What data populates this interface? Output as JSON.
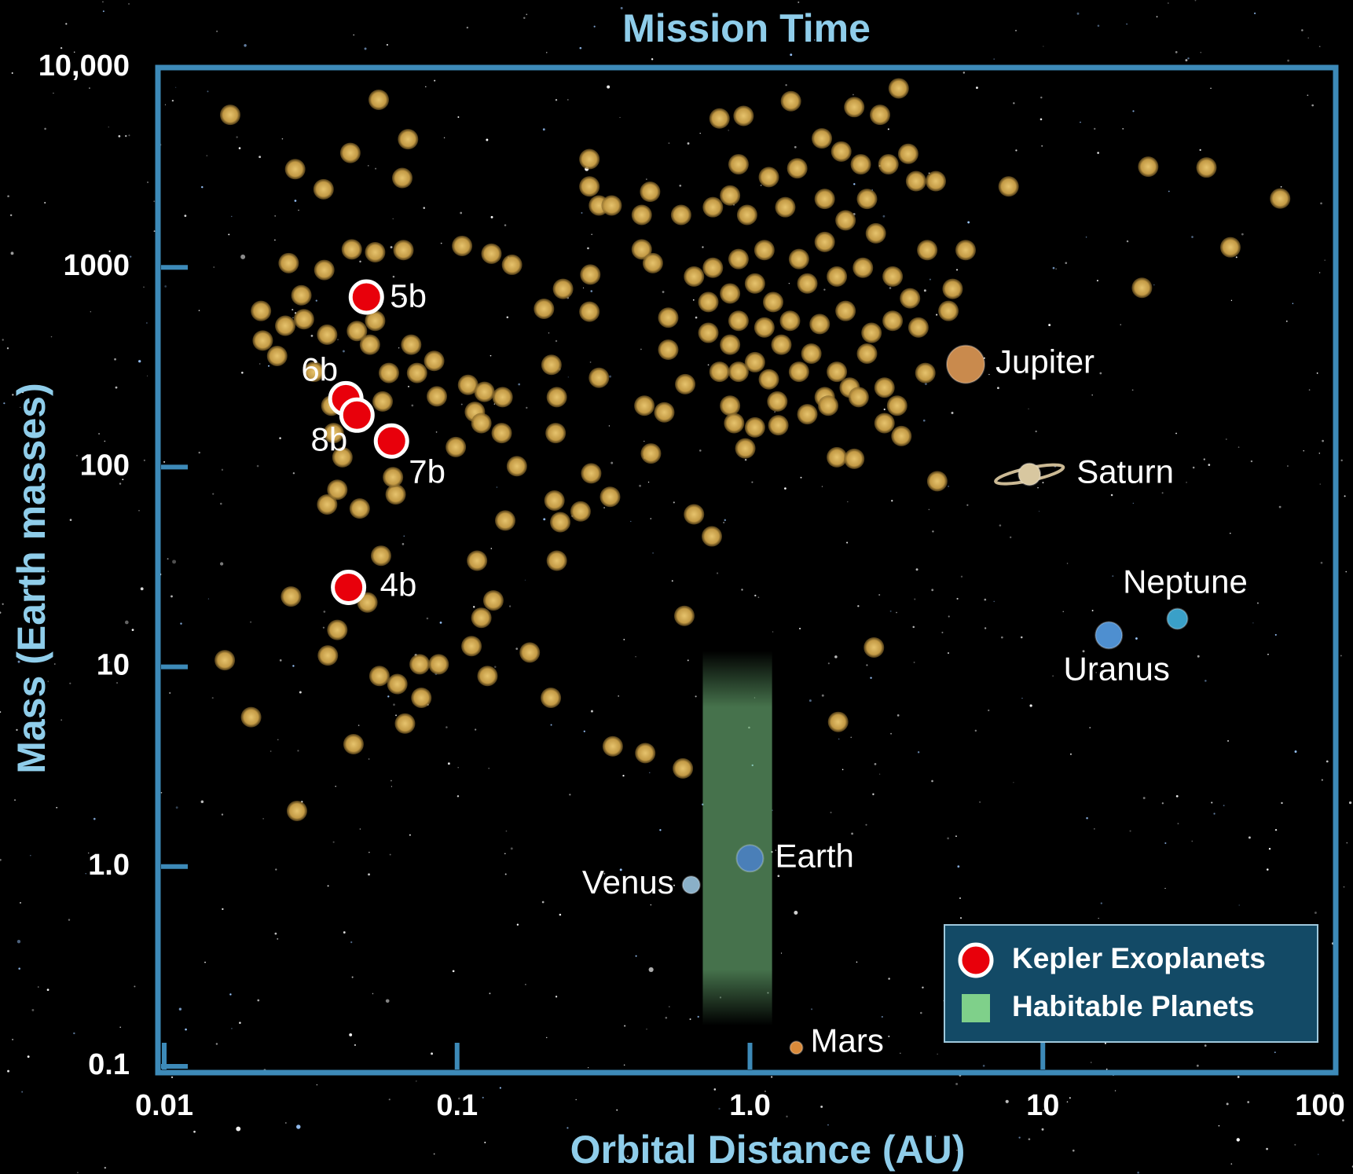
{
  "chart_data": {
    "type": "scatter",
    "title": "Mission Time",
    "x_label": "Orbital Distance (AU)",
    "y_label": "Mass (Earth masses)",
    "xscale": "log",
    "yscale": "log",
    "xlim": [
      0.01,
      100
    ],
    "ylim": [
      0.1,
      10000
    ],
    "xticks": [
      0.01,
      0.1,
      {
        "value": 1,
        "label": "1.0"
      },
      10,
      100
    ],
    "yticks": [
      0.1,
      {
        "value": 1,
        "label": "1.0"
      },
      10,
      100,
      1000,
      {
        "value": 10000,
        "label": "10,000"
      }
    ],
    "legend": "lower right",
    "series": [
      {
        "color": "#c9a14b",
        "x": [
          0.0168,
          0.054,
          0.028,
          0.035,
          0.0432,
          0.068,
          0.065,
          0.0266,
          0.0352,
          0.0437,
          0.0525,
          0.0656,
          0.0214,
          0.0259,
          0.0294,
          0.0217,
          0.0243,
          0.03,
          0.036,
          0.0455,
          0.0525,
          0.0325,
          0.0372,
          0.0504,
          0.0557,
          0.0697,
          0.073,
          0.0585,
          0.0853,
          0.0835,
          0.0379,
          0.0406,
          0.036,
          0.039,
          0.0465,
          0.0617,
          0.0604,
          0.055,
          0.0271,
          0.0494,
          0.039,
          0.0362,
          0.0161,
          0.0198,
          0.0543,
          0.0625,
          0.0745,
          0.0865,
          0.0755,
          0.0664,
          0.0443,
          0.0284,
          0.104,
          0.131,
          0.154,
          0.198,
          0.23,
          0.285,
          0.283,
          0.21,
          0.305,
          0.109,
          0.124,
          0.143,
          0.115,
          0.121,
          0.142,
          0.099,
          0.219,
          0.217,
          0.16,
          0.287,
          0.215,
          0.264,
          0.333,
          0.146,
          0.225,
          0.117,
          0.219,
          0.133,
          0.121,
          0.112,
          0.177,
          0.127,
          0.209,
          0.34,
          0.439,
          0.59,
          0.597,
          0.644,
          0.741,
          0.283,
          0.283,
          0.305,
          0.337,
          0.456,
          0.427,
          0.582,
          0.427,
          0.466,
          0.787,
          0.951,
          1.38,
          2.27,
          2.78,
          3.22,
          7.64,
          22.9,
          36.2,
          64.6,
          43.7,
          21.8,
          4.36,
          2.65,
          2.0,
          5.45,
          0.914,
          1.16,
          1.45,
          1.76,
          2.05,
          2.39,
          2.97,
          3.47,
          3.69,
          4.31,
          0.747,
          0.855,
          0.978,
          1.32,
          1.8,
          2.12,
          2.51,
          2.69,
          1.8,
          1.47,
          1.12,
          0.914,
          0.747,
          0.644,
          0.721,
          0.855,
          1.04,
          1.2,
          1.57,
          1.98,
          2.43,
          3.07,
          3.52,
          4.03,
          4.92,
          4.76,
          3.76,
          3.07,
          2.6,
          2.12,
          1.73,
          1.37,
          1.12,
          0.914,
          0.721,
          0.855,
          1.04,
          1.28,
          1.62,
          1.98,
          2.51,
          2.88,
          2.19,
          1.8,
          1.47,
          1.16,
          0.914,
          0.787,
          0.855,
          1.04,
          1.24,
          1.57,
          1.85,
          2.35,
          3.18,
          3.29,
          2.88,
          1.98,
          2.27,
          0.964,
          0.883,
          1.25,
          3.97,
          0.459,
          0.526,
          0.436,
          0.51,
          0.601,
          0.526
        ],
        "y": [
          5800,
          6900,
          3100,
          2460,
          3740,
          4380,
          2800,
          1050,
          970,
          1230,
          1190,
          1220,
          605,
          510,
          725,
          430,
          360,
          550,
          460,
          480,
          540,
          300,
          203,
          410,
          213,
          410,
          296,
          296,
          226,
          340,
          148,
          112,
          65,
          77,
          62,
          73,
          89,
          36,
          22.5,
          21,
          15.3,
          11.4,
          10.8,
          5.6,
          9.0,
          8.2,
          10.3,
          10.3,
          7.0,
          5.2,
          4.1,
          1.9,
          1280,
          1170,
          1030,
          620,
          780,
          920,
          600,
          325,
          280,
          258,
          238,
          224,
          189,
          166,
          148,
          126,
          224,
          148,
          101,
          93,
          68,
          60,
          71,
          54,
          53,
          34,
          34,
          21.5,
          17.6,
          12.7,
          11.8,
          9.0,
          7.0,
          4.0,
          3.7,
          3.1,
          18,
          58,
          45,
          3480,
          2540,
          2040,
          2040,
          2390,
          1830,
          1830,
          1230,
          1050,
          5560,
          5730,
          6790,
          6340,
          5800,
          7870,
          2540,
          3190,
          3160,
          2210,
          1260,
          790,
          85,
          12.5,
          5.3,
          1220,
          3280,
          2830,
          3130,
          4420,
          3800,
          3280,
          3280,
          3700,
          2700,
          2700,
          2000,
          2290,
          1830,
          2000,
          2200,
          1720,
          2200,
          1480,
          1340,
          1100,
          1220,
          1100,
          995,
          900,
          670,
          740,
          830,
          670,
          830,
          900,
          995,
          900,
          700,
          1220,
          780,
          605,
          500,
          540,
          470,
          605,
          520,
          540,
          500,
          540,
          470,
          410,
          335,
          410,
          370,
          300,
          370,
          250,
          250,
          224,
          300,
          275,
          300,
          300,
          203,
          158,
          213,
          184,
          203,
          224,
          203,
          143,
          166,
          112,
          110,
          124,
          166,
          162,
          296,
          117,
          387,
          203,
          188,
          260,
          560
        ]
      },
      {
        "name": "Kepler Exoplanets",
        "color": "#e8000b",
        "x": [
          0.0426,
          0.049,
          0.0417,
          0.0455,
          0.0597
        ],
        "y": [
          25,
          710,
          220,
          182,
          135
        ],
        "labels": [
          "4b",
          "5b",
          "6b",
          "8b",
          "7b"
        ]
      },
      {
        "name": "Habitable Planets",
        "color": "#7fd08a",
        "xrange": [
          0.69,
          1.19
        ],
        "yrange": [
          0.16,
          12
        ]
      },
      {
        "x": [
          0.63,
          1.0,
          1.44,
          5.45,
          9.0,
          16.8,
          28.8
        ],
        "y": [
          0.81,
          1.1,
          0.124,
          327,
          92,
          14.4,
          17.4
        ],
        "labels": [
          "Venus",
          "Earth",
          "Mars",
          "Jupiter",
          "Saturn",
          "Uranus",
          "Neptune"
        ],
        "colors": [
          "#8ab0c8",
          "#4a7fb8",
          "#d98a3a",
          "#c98a4d",
          "#d8c7a0",
          "#4e8fd0",
          "#3aa0c8"
        ]
      }
    ]
  }
}
